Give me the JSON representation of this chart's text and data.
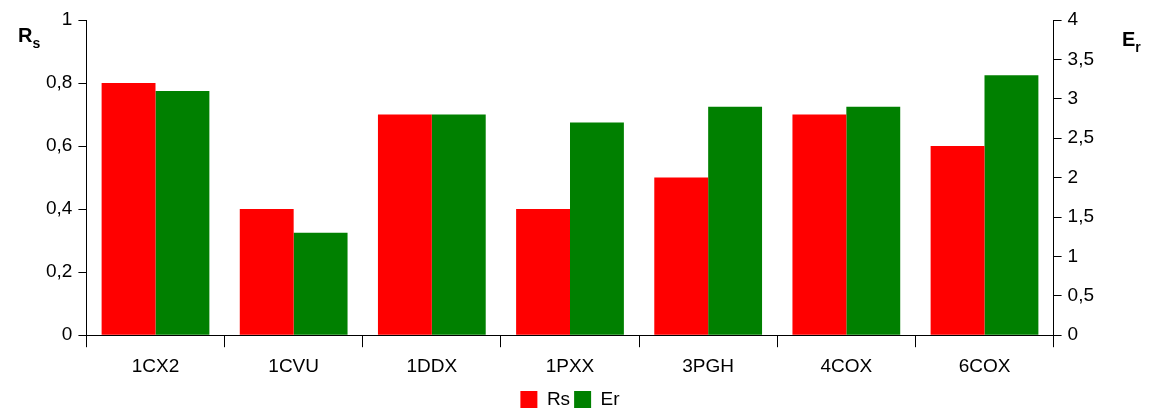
{
  "chart_data": {
    "type": "bar",
    "categories": [
      "1CX2",
      "1CVU",
      "1DDX",
      "1PXX",
      "3PGH",
      "4COX",
      "6COX"
    ],
    "series": [
      {
        "name": "Rs",
        "color": "#ff0000",
        "values": [
          0.8,
          0.4,
          0.7,
          0.4,
          0.5,
          0.7,
          0.6
        ]
      },
      {
        "name": "Er",
        "color": "#008000",
        "axis": "y2",
        "values": [
          3.1,
          1.3,
          2.8,
          2.7,
          2.9,
          2.9,
          3.3
        ]
      }
    ],
    "ylabel": "R$_{s}$",
    "y2label": "E$_{r}$",
    "ylim": [
      0,
      1
    ],
    "yticks": [
      0,
      {
        "value": 0.2,
        "label": "0,2"
      },
      {
        "value": 0.4,
        "label": "0,4"
      },
      {
        "value": 0.6,
        "label": "0,6"
      },
      {
        "value": 0.8,
        "label": "0,8"
      },
      1
    ],
    "y2lim": [
      0,
      4
    ],
    "y2ticks": [
      0,
      {
        "value": 0.5,
        "label": "0,5"
      },
      1,
      {
        "value": 1.5,
        "label": "1,5"
      },
      2,
      {
        "value": 2.5,
        "label": "2,5"
      },
      3,
      {
        "value": 3.5,
        "label": "3,5"
      },
      4
    ],
    "grid": false,
    "legend": "bottom"
  }
}
